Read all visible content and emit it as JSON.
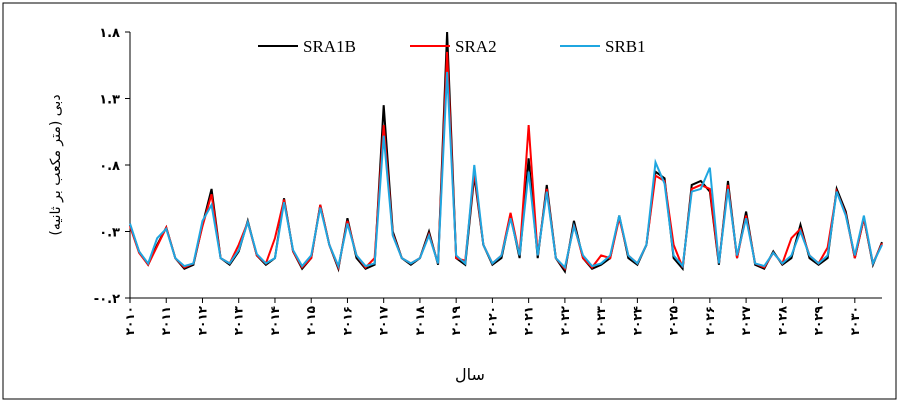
{
  "chart_data": {
    "type": "line",
    "y_label": "دبی (متر مکعب بر ثانیه)",
    "x_label": "سال",
    "categories": [
      "۲۰۱۰",
      null,
      null,
      null,
      "۲۰۱۱",
      null,
      null,
      null,
      "۲۰۱۲",
      null,
      null,
      null,
      "۲۰۱۳",
      null,
      null,
      null,
      "۲۰۱۴",
      null,
      null,
      null,
      "۲۰۱۵",
      null,
      null,
      null,
      "۲۰۱۶",
      null,
      null,
      null,
      "۲۰۱۷",
      null,
      null,
      null,
      "۲۰۱۸",
      null,
      null,
      null,
      "۲۰۱۹",
      null,
      null,
      null,
      "۲۰۲۰",
      null,
      null,
      null,
      "۲۰۲۱",
      null,
      null,
      null,
      "۲۰۲۲",
      null,
      null,
      null,
      "۲۰۲۳",
      null,
      null,
      null,
      "۲۰۲۴",
      null,
      null,
      null,
      "۲۰۲۵",
      null,
      null,
      null,
      "۲۰۲۶",
      null,
      null,
      null,
      "۲۰۲۷",
      null,
      null,
      null,
      "۲۰۲۸",
      null,
      null,
      null,
      "۲۰۲۹",
      null,
      null,
      null,
      "۲۰۳۰",
      null,
      null,
      null
    ],
    "series": [
      {
        "name": "SRA1B",
        "color": "#000000",
        "values": [
          0.35,
          0.15,
          0.05,
          0.2,
          0.33,
          0.1,
          0.02,
          0.05,
          0.35,
          0.62,
          0.1,
          0.05,
          0.15,
          0.38,
          0.12,
          0.05,
          0.1,
          0.55,
          0.15,
          0.02,
          0.1,
          0.5,
          0.2,
          0.02,
          0.4,
          0.1,
          0.02,
          0.05,
          1.25,
          0.3,
          0.1,
          0.05,
          0.1,
          0.3,
          0.05,
          1.8,
          0.1,
          0.05,
          0.72,
          0.2,
          0.05,
          0.1,
          0.42,
          0.1,
          0.85,
          0.1,
          0.65,
          0.1,
          0.0,
          0.38,
          0.1,
          0.02,
          0.05,
          0.1,
          0.42,
          0.1,
          0.05,
          0.2,
          0.75,
          0.7,
          0.1,
          0.02,
          0.65,
          0.68,
          0.6,
          0.05,
          0.68,
          0.1,
          0.45,
          0.05,
          0.02,
          0.15,
          0.05,
          0.1,
          0.35,
          0.1,
          0.05,
          0.1,
          0.62,
          0.45,
          0.1,
          0.4,
          0.05,
          0.22
        ]
      },
      {
        "name": "SRA2",
        "color": "#ff0000",
        "values": [
          0.34,
          0.14,
          0.05,
          0.19,
          0.33,
          0.1,
          0.03,
          0.06,
          0.34,
          0.58,
          0.1,
          0.06,
          0.2,
          0.37,
          0.12,
          0.06,
          0.25,
          0.54,
          0.15,
          0.03,
          0.1,
          0.5,
          0.2,
          0.03,
          0.38,
          0.12,
          0.03,
          0.1,
          1.1,
          0.28,
          0.1,
          0.06,
          0.1,
          0.28,
          0.06,
          1.65,
          0.1,
          0.08,
          0.75,
          0.2,
          0.06,
          0.12,
          0.44,
          0.12,
          1.1,
          0.12,
          0.62,
          0.1,
          0.02,
          0.35,
          0.1,
          0.03,
          0.12,
          0.1,
          0.4,
          0.12,
          0.06,
          0.2,
          0.72,
          0.68,
          0.2,
          0.03,
          0.62,
          0.65,
          0.62,
          0.06,
          0.65,
          0.1,
          0.42,
          0.06,
          0.03,
          0.14,
          0.06,
          0.25,
          0.32,
          0.12,
          0.06,
          0.18,
          0.6,
          0.43,
          0.1,
          0.4,
          0.06,
          0.21
        ]
      },
      {
        "name": "SRB1",
        "color": "#1fa6e0",
        "values": [
          0.36,
          0.15,
          0.06,
          0.25,
          0.32,
          0.1,
          0.04,
          0.06,
          0.38,
          0.5,
          0.1,
          0.06,
          0.16,
          0.37,
          0.13,
          0.06,
          0.1,
          0.52,
          0.16,
          0.04,
          0.12,
          0.48,
          0.2,
          0.04,
          0.36,
          0.12,
          0.04,
          0.06,
          1.02,
          0.27,
          0.1,
          0.06,
          0.1,
          0.27,
          0.06,
          1.5,
          0.12,
          0.06,
          0.8,
          0.2,
          0.06,
          0.12,
          0.4,
          0.12,
          0.75,
          0.12,
          0.6,
          0.1,
          0.03,
          0.34,
          0.12,
          0.04,
          0.06,
          0.12,
          0.42,
          0.12,
          0.06,
          0.2,
          0.82,
          0.66,
          0.12,
          0.04,
          0.6,
          0.62,
          0.78,
          0.06,
          0.62,
          0.12,
          0.4,
          0.06,
          0.04,
          0.14,
          0.06,
          0.12,
          0.3,
          0.12,
          0.06,
          0.12,
          0.6,
          0.42,
          0.12,
          0.42,
          0.06,
          0.2
        ]
      }
    ],
    "ylim": [
      -0.2,
      1.8
    ],
    "yticks": [
      {
        "value": -0.2,
        "label": "-۰.۲"
      },
      {
        "value": 0.3,
        "label": "۰.۳"
      },
      {
        "value": 0.8,
        "label": "۰.۸"
      },
      {
        "value": 1.3,
        "label": "۱.۳"
      },
      {
        "value": 1.8,
        "label": "۱.۸"
      }
    ],
    "legend": "top"
  }
}
